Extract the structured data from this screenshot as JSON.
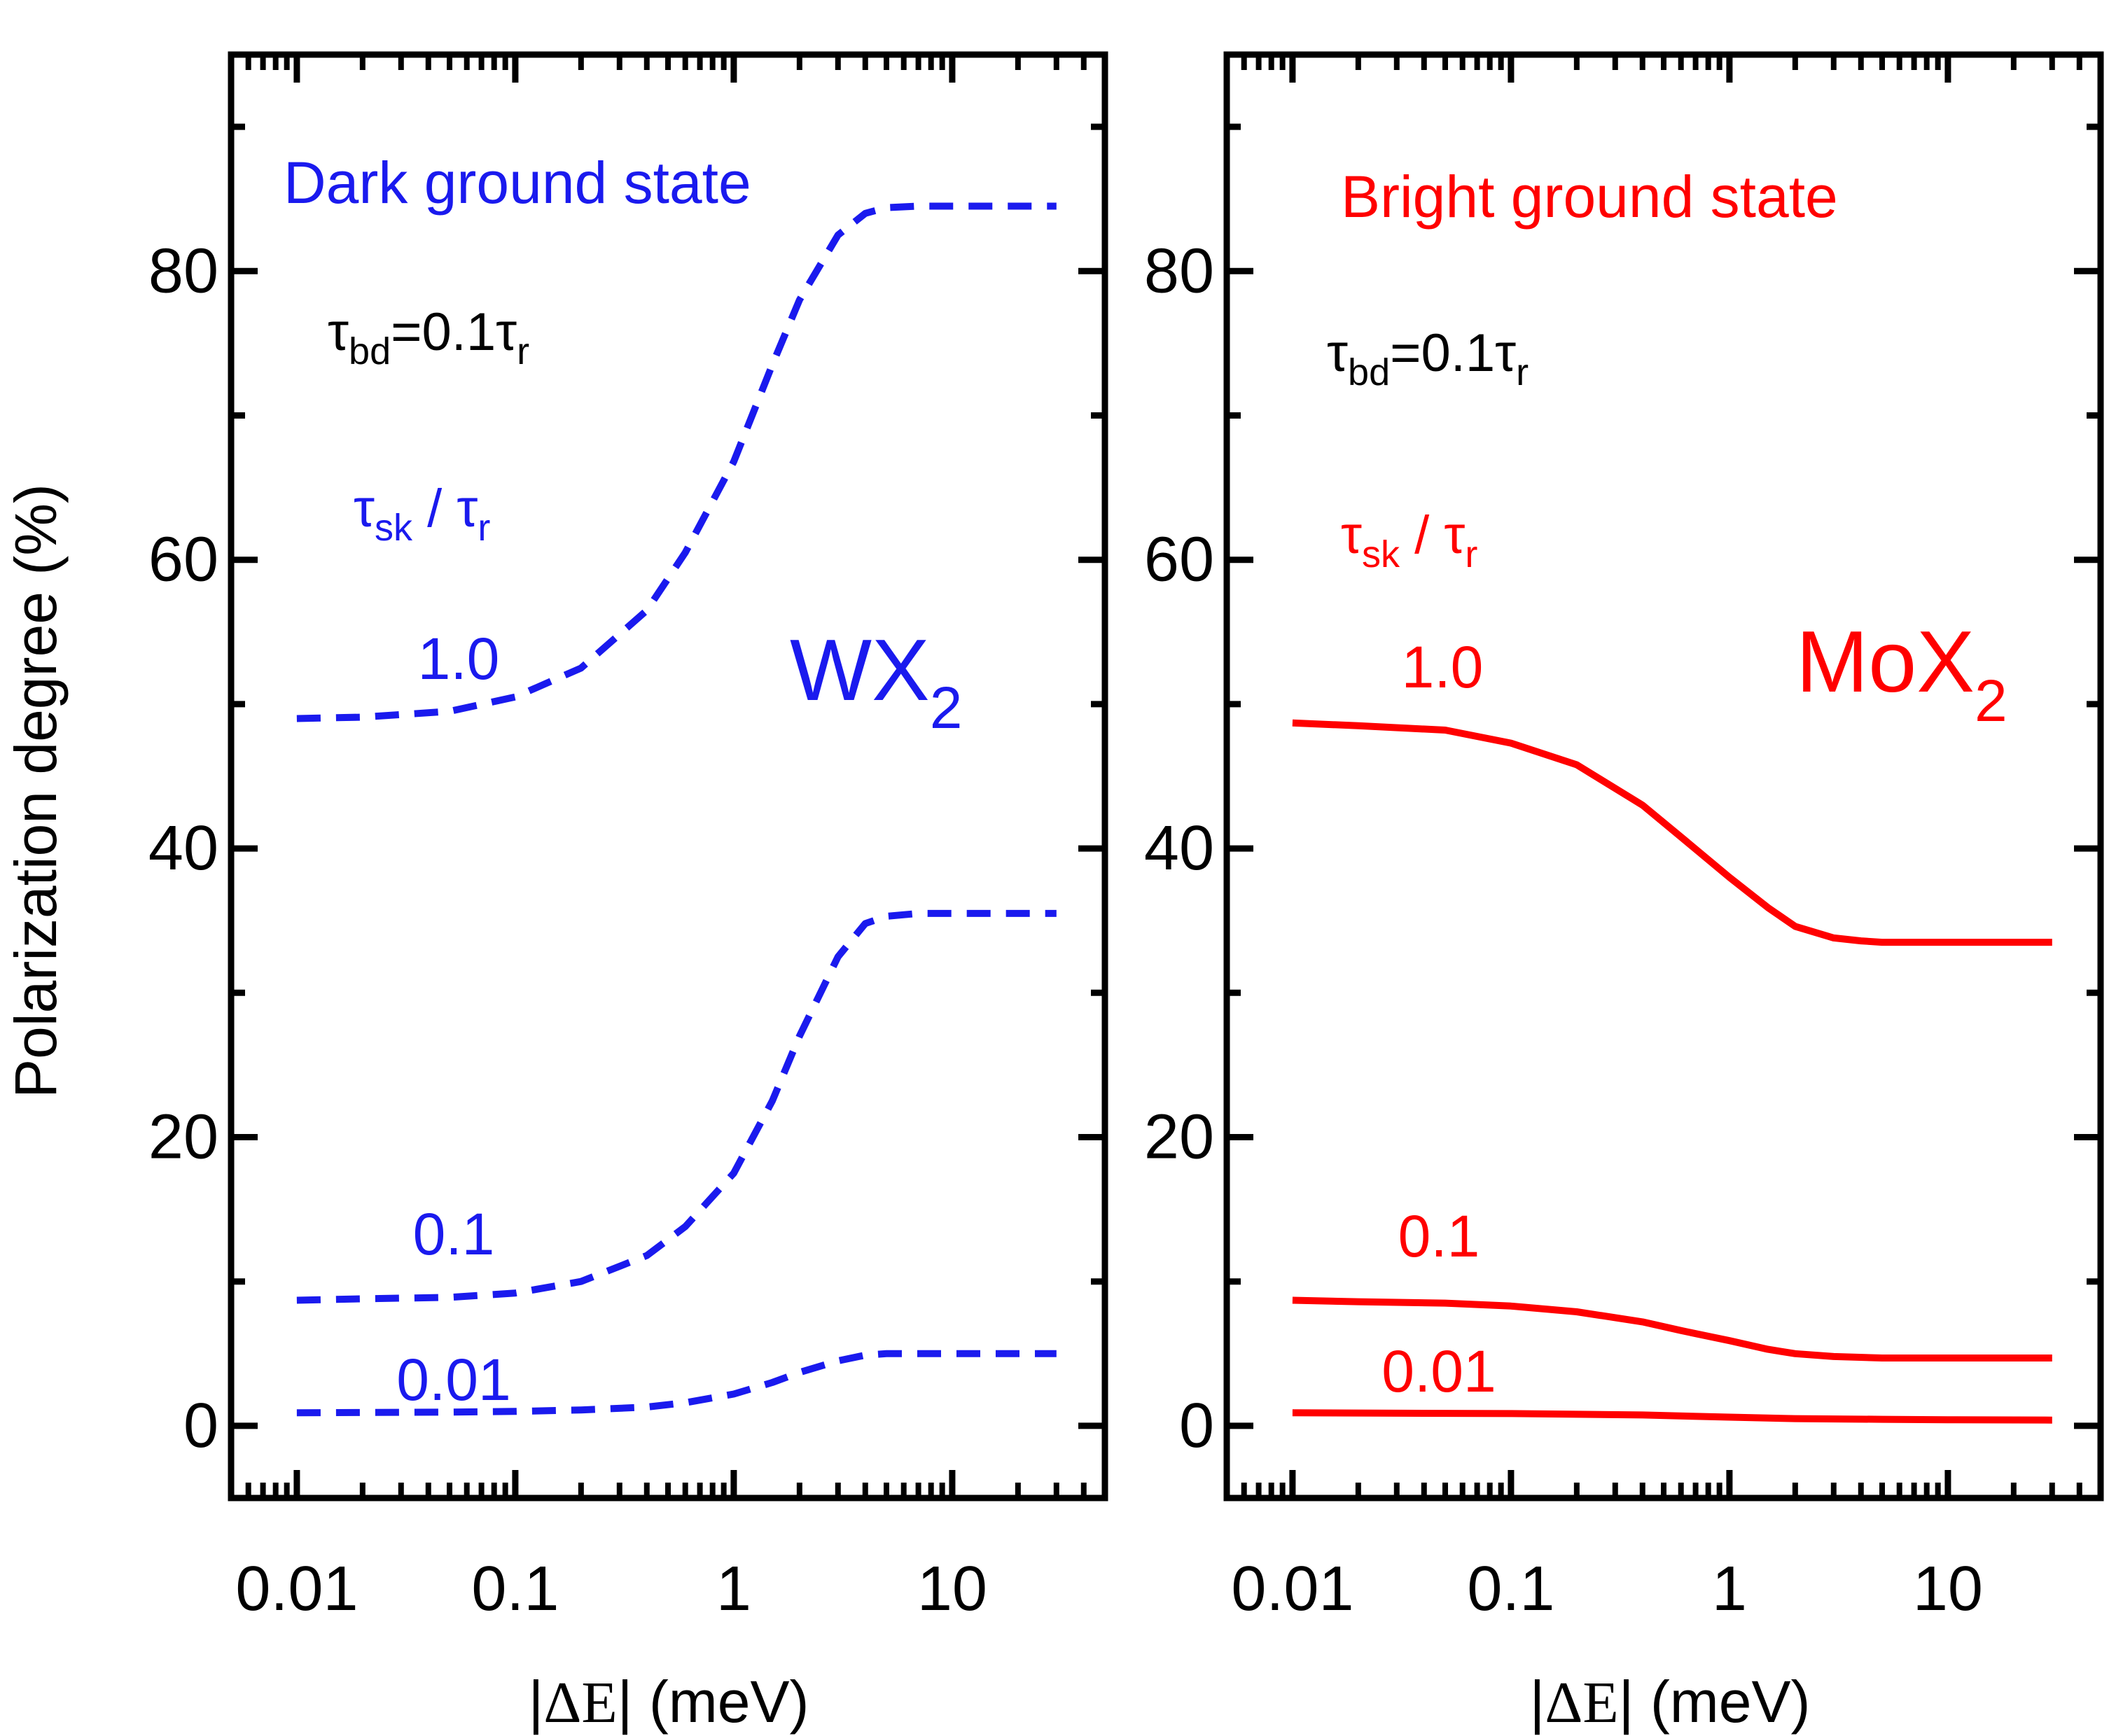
{
  "figure": {
    "ylabel": "Polarization degree (%)"
  },
  "chart_data": [
    {
      "type": "line",
      "panel": "left",
      "title": "Dark ground state",
      "material_label": {
        "main": "WX",
        "sub": "2"
      },
      "parameter_label": {
        "tau": "τ",
        "sub1": "bd",
        "eq": "=0.1τ",
        "sub2": "r"
      },
      "ratio_label": {
        "tau1": "τ",
        "sub1": "sk",
        "slash": " / τ",
        "sub2": "r"
      },
      "xlabel": {
        "bar1": "|",
        "delta_e": "ΔE",
        "bar2": "|",
        "unit": " (meV)"
      },
      "xscale": "log",
      "xlim": [
        0.005,
        50
      ],
      "ylim": [
        -5,
        95
      ],
      "xticks": [
        {
          "value": 0.01,
          "label": "0.01"
        },
        {
          "value": 0.1,
          "label": "0.1"
        },
        {
          "value": 1,
          "label": "1"
        },
        {
          "value": 10,
          "label": "10"
        }
      ],
      "yticks": [
        {
          "value": 0,
          "label": "0"
        },
        {
          "value": 20,
          "label": "20"
        },
        {
          "value": 40,
          "label": "40"
        },
        {
          "value": 60,
          "label": "60"
        },
        {
          "value": 80,
          "label": "80"
        }
      ],
      "line_style": "dashed",
      "color": "#1a1aee",
      "series": [
        {
          "name": "1.0",
          "label": "1.0",
          "x": [
            0.01,
            0.02,
            0.05,
            0.1,
            0.2,
            0.4,
            0.6,
            1.0,
            1.5,
            2.0,
            3.0,
            4.0,
            5.0,
            7.0,
            10,
            20,
            30
          ],
          "y": [
            49.0,
            49.1,
            49.5,
            50.5,
            52.5,
            56.5,
            60.5,
            66.8,
            73.5,
            78.0,
            82.5,
            84.0,
            84.4,
            84.5,
            84.5,
            84.5,
            84.5
          ]
        },
        {
          "name": "0.1",
          "label": "0.1",
          "x": [
            0.01,
            0.02,
            0.05,
            0.1,
            0.2,
            0.4,
            0.6,
            1.0,
            1.5,
            2.0,
            3.0,
            4.0,
            5.0,
            7.0,
            10,
            20,
            30
          ],
          "y": [
            8.7,
            8.8,
            8.9,
            9.2,
            10.0,
            11.8,
            13.8,
            17.5,
            22.5,
            27.0,
            32.5,
            34.8,
            35.3,
            35.5,
            35.5,
            35.5,
            35.5
          ]
        },
        {
          "name": "0.01",
          "label": "0.01",
          "x": [
            0.01,
            0.05,
            0.1,
            0.2,
            0.4,
            0.6,
            1.0,
            1.5,
            2.0,
            3.0,
            4.0,
            5.0,
            10,
            30
          ],
          "y": [
            0.9,
            0.95,
            1.0,
            1.1,
            1.3,
            1.6,
            2.2,
            3.0,
            3.7,
            4.5,
            4.9,
            5.0,
            5.0,
            5.0
          ]
        }
      ]
    },
    {
      "type": "line",
      "panel": "right",
      "title": "Bright ground state",
      "material_label": {
        "main": "MoX",
        "sub": "2"
      },
      "parameter_label": {
        "tau": "τ",
        "sub1": "bd",
        "eq": "=0.1τ",
        "sub2": "r"
      },
      "ratio_label": {
        "tau1": "τ",
        "sub1": "sk",
        "slash": " / τ",
        "sub2": "r"
      },
      "xlabel": {
        "bar1": "|",
        "delta_e": "ΔE",
        "bar2": "|",
        "unit": " (meV)"
      },
      "xscale": "log",
      "xlim": [
        0.005,
        50
      ],
      "ylim": [
        -5,
        95
      ],
      "xticks": [
        {
          "value": 0.01,
          "label": "0.01"
        },
        {
          "value": 0.1,
          "label": "0.1"
        },
        {
          "value": 1,
          "label": "1"
        },
        {
          "value": 10,
          "label": "10"
        }
      ],
      "yticks": [
        {
          "value": 0,
          "label": "0"
        },
        {
          "value": 20,
          "label": "20"
        },
        {
          "value": 40,
          "label": "40"
        },
        {
          "value": 60,
          "label": "60"
        },
        {
          "value": 80,
          "label": "80"
        }
      ],
      "line_style": "solid",
      "color": "#ff0000",
      "series": [
        {
          "name": "1.0",
          "label": "1.0",
          "x": [
            0.01,
            0.02,
            0.05,
            0.1,
            0.2,
            0.4,
            0.6,
            1.0,
            1.5,
            2.0,
            3.0,
            4.0,
            5.0,
            7.0,
            10,
            20,
            30
          ],
          "y": [
            48.7,
            48.5,
            48.2,
            47.3,
            45.8,
            43.0,
            40.8,
            38.0,
            35.9,
            34.6,
            33.8,
            33.6,
            33.5,
            33.5,
            33.5,
            33.5,
            33.5
          ]
        },
        {
          "name": "0.1",
          "label": "0.1",
          "x": [
            0.01,
            0.02,
            0.05,
            0.1,
            0.2,
            0.4,
            0.6,
            1.0,
            1.5,
            2.0,
            3.0,
            5.0,
            10,
            30
          ],
          "y": [
            8.7,
            8.6,
            8.5,
            8.3,
            7.9,
            7.2,
            6.6,
            5.9,
            5.3,
            5.0,
            4.8,
            4.7,
            4.7,
            4.7
          ]
        },
        {
          "name": "0.01",
          "label": "0.01",
          "x": [
            0.01,
            0.1,
            0.4,
            1.0,
            2.0,
            5.0,
            10,
            30
          ],
          "y": [
            0.9,
            0.85,
            0.75,
            0.6,
            0.5,
            0.45,
            0.42,
            0.4
          ]
        }
      ]
    }
  ]
}
